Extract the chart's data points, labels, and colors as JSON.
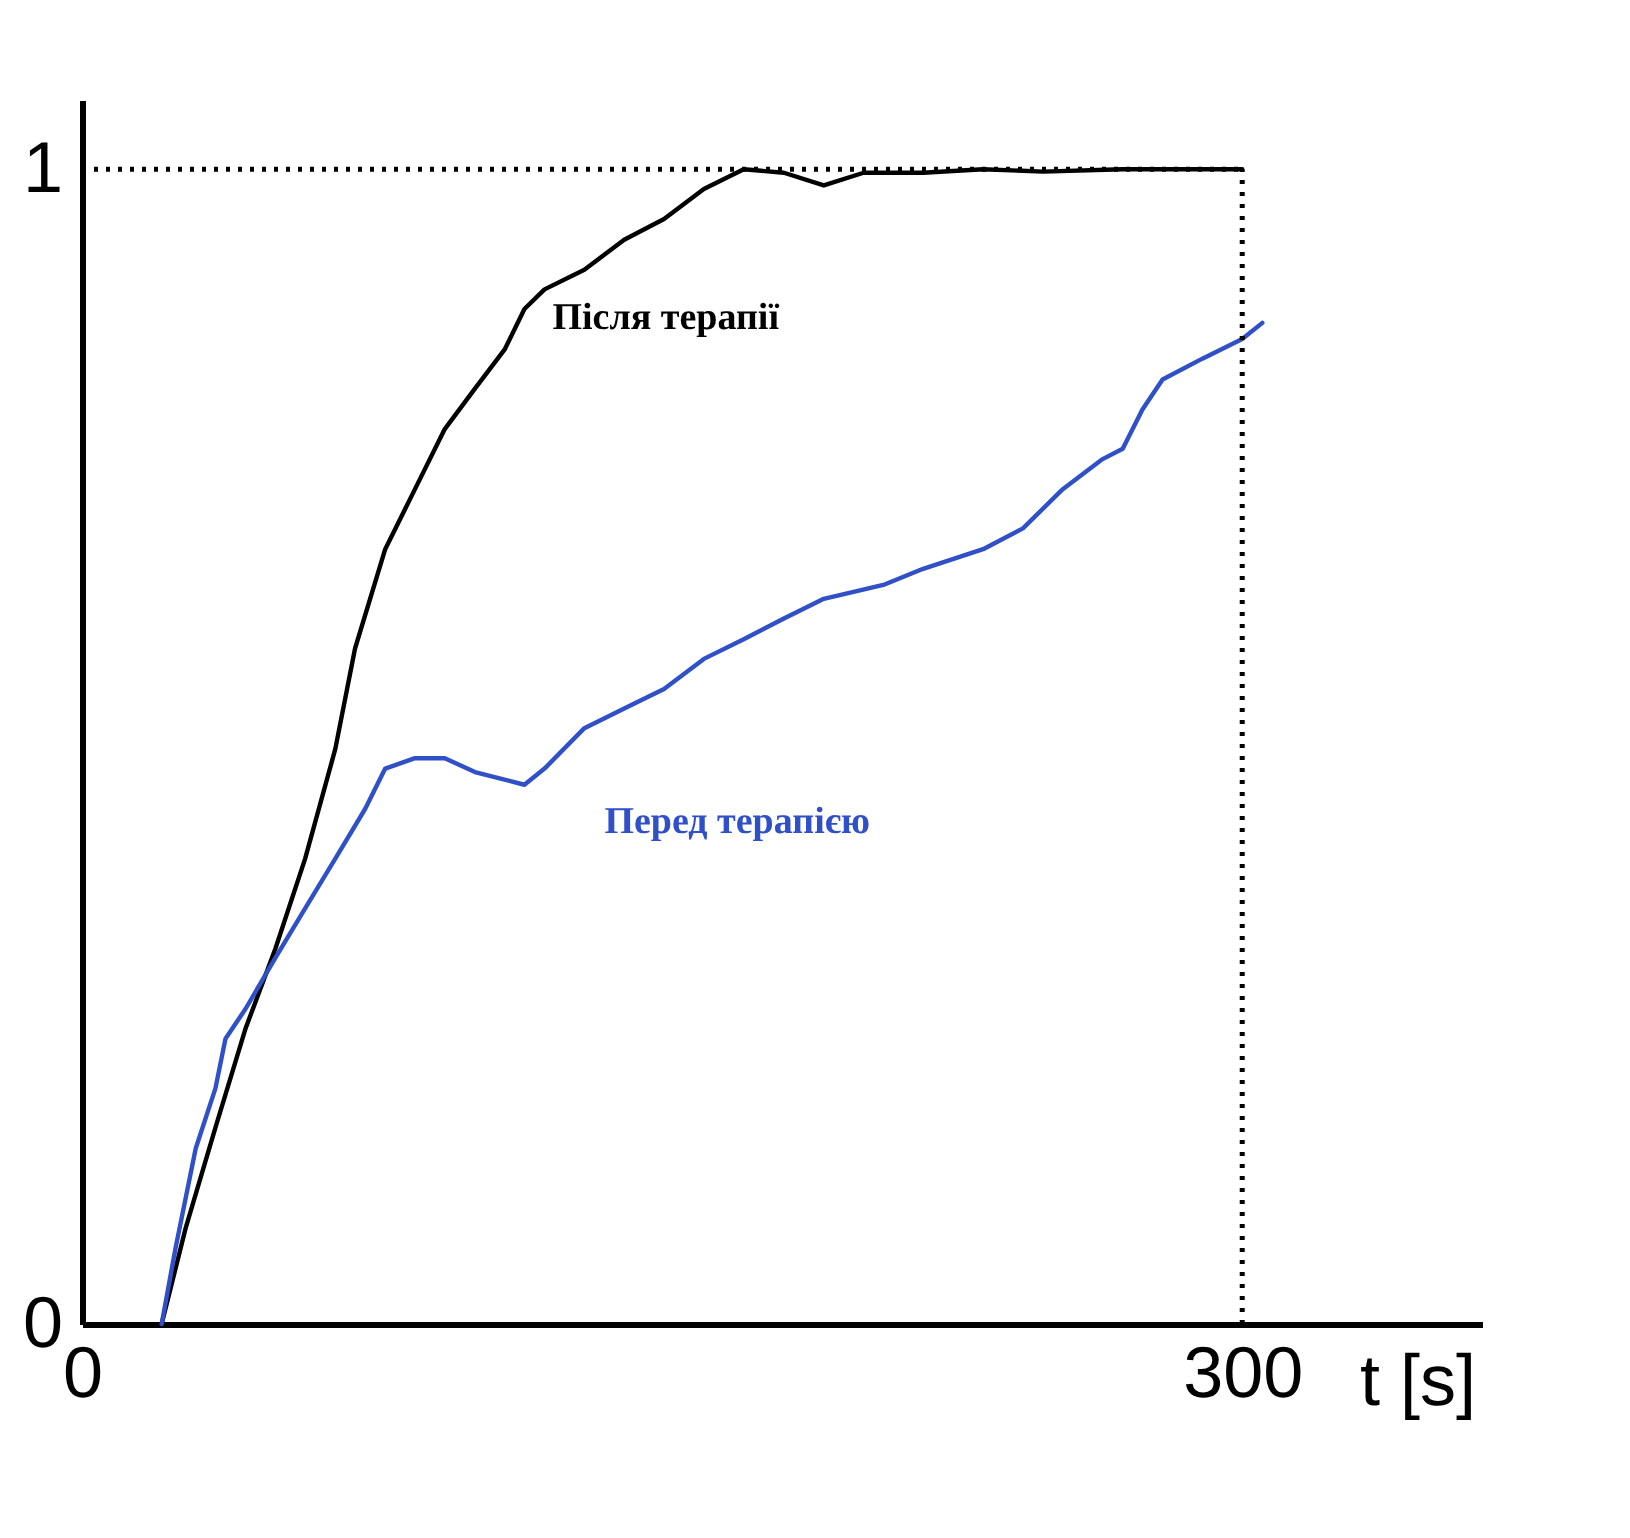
{
  "chart_data": {
    "type": "line",
    "xlabel": "t [s]",
    "xlim": [
      0,
      362
    ],
    "ylim": [
      0,
      1.06
    ],
    "xticks": [
      0,
      300
    ],
    "yticks": [
      0,
      1
    ],
    "grid": false,
    "legend": false,
    "marker": "none",
    "line_style": "solid",
    "series": [
      {
        "name": "Після терапії",
        "color": "#000000",
        "x": [
          20.6,
          26.8,
          34.5,
          42.3,
          50,
          57.7,
          65.5,
          70.6,
          78.4,
          86.1,
          93.8,
          101.6,
          109.3,
          114.4,
          119.6,
          129.9,
          140.2,
          150.5,
          160.8,
          171.1,
          181.5,
          191.8,
          202.1,
          217.5,
          233,
          248.5,
          269,
          284.5,
          300
        ],
        "values": [
          0,
          0.083,
          0.17,
          0.256,
          0.325,
          0.403,
          0.498,
          0.585,
          0.671,
          0.723,
          0.775,
          0.81,
          0.844,
          0.879,
          0.896,
          0.913,
          0.939,
          0.957,
          0.983,
          1.0,
          0.997,
          0.986,
          0.997,
          0.997,
          1.0,
          0.998,
          1.0,
          1.0,
          1.0
        ]
      },
      {
        "name": "Перед терапією",
        "color": "#3050c8",
        "x": [
          20.6,
          24.2,
          29.4,
          34.5,
          37.1,
          42.3,
          50,
          57.7,
          65.5,
          73.2,
          78.4,
          86.1,
          93.8,
          101.6,
          114.4,
          119.6,
          129.9,
          140.2,
          150.5,
          160.8,
          171.1,
          181.5,
          191.8,
          207.2,
          217.5,
          233,
          243.3,
          253.6,
          263.9,
          269.1,
          274.2,
          279.4,
          289.7,
          300,
          305.2
        ],
        "values": [
          0,
          0.066,
          0.152,
          0.204,
          0.247,
          0.273,
          0.317,
          0.36,
          0.403,
          0.446,
          0.481,
          0.49,
          0.49,
          0.478,
          0.467,
          0.481,
          0.516,
          0.533,
          0.55,
          0.576,
          0.593,
          0.611,
          0.628,
          0.64,
          0.654,
          0.671,
          0.689,
          0.723,
          0.749,
          0.758,
          0.792,
          0.818,
          0.836,
          0.853,
          0.867
        ]
      }
    ],
    "ref_lines": [
      {
        "axis": "y",
        "value": 1,
        "line_style": "dotted",
        "color": "#000000"
      },
      {
        "axis": "x",
        "value": 300,
        "line_style": "dotted",
        "color": "#000000"
      }
    ]
  }
}
